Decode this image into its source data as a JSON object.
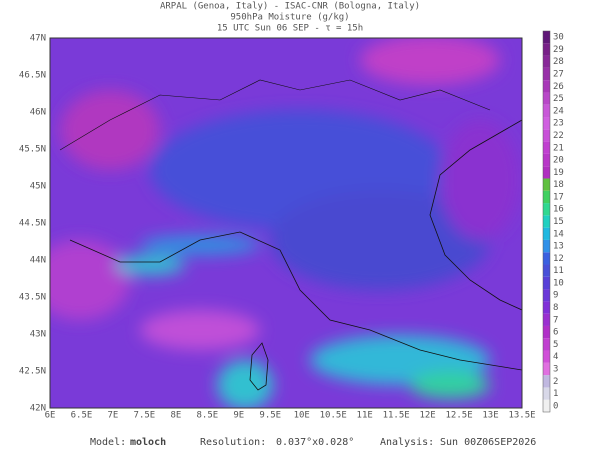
{
  "header": {
    "line1": "ARPAL (Genoa, Italy)  -  ISAC-CNR (Bologna, Italy)",
    "line2": "950hPa Moisture (g/kg)",
    "line3": "15 UTC Sun 06 SEP  -  τ = 15h"
  },
  "map": {
    "lat_labels": [
      "47N",
      "46.5N",
      "46N",
      "45.5N",
      "45N",
      "44.5N",
      "44N",
      "43.5N",
      "43N",
      "42.5N",
      "42N"
    ],
    "lon_labels": [
      "6E",
      "6.5E",
      "7E",
      "7.5E",
      "8E",
      "8.5E",
      "9E",
      "9.5E",
      "10E",
      "10.5E",
      "11E",
      "11.5E",
      "12E",
      "12.5E",
      "13E",
      "13.5E"
    ]
  },
  "colorbar": {
    "levels": [
      0,
      1,
      2,
      3,
      4,
      5,
      6,
      7,
      8,
      9,
      10,
      11,
      12,
      13,
      14,
      15,
      16,
      17,
      18,
      19,
      20,
      21,
      22,
      23,
      24,
      25,
      26,
      27,
      28,
      29,
      30
    ],
    "colors": [
      "#f0f0f0",
      "#d8d8e8",
      "#c0b8e0",
      "#e070e0",
      "#d050d8",
      "#c040d0",
      "#b030c8",
      "#9a30d0",
      "#8030d8",
      "#6a38d8",
      "#5840d8",
      "#4850d8",
      "#3a60e0",
      "#3090e8",
      "#20b8e0",
      "#20d0c0",
      "#30d890",
      "#40d060",
      "#60c040",
      "#b030c0",
      "#b838c8",
      "#c040d0",
      "#c850d8",
      "#d060e0",
      "#c858d8",
      "#b848c8",
      "#a838b8",
      "#9830a8",
      "#882898",
      "#782088",
      "#601878"
    ]
  },
  "footer": {
    "model_label": "Model:",
    "model": "moloch",
    "resolution_label": "Resolution:",
    "resolution": "0.037°x0.028°",
    "analysis_label": "Analysis:",
    "analysis": "Sun 00Z06SEP2026"
  }
}
